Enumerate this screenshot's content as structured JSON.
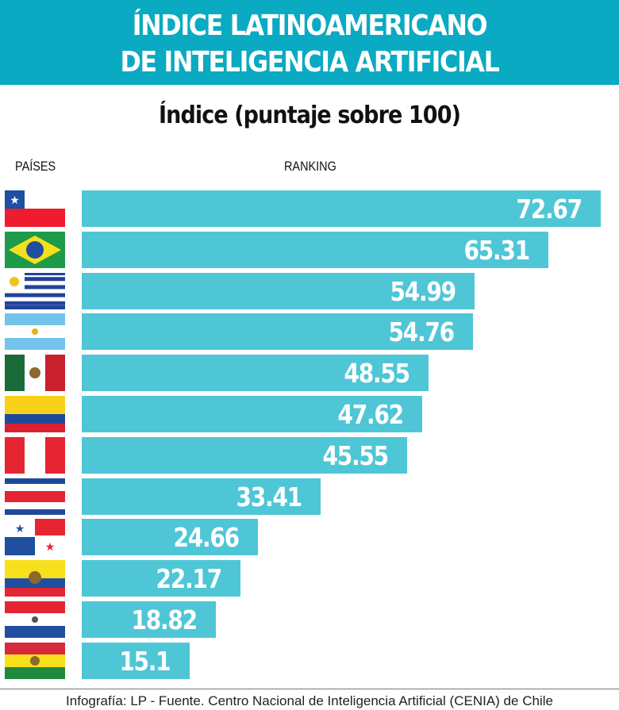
{
  "header": {
    "title_line1": "ÍNDICE LATINOAMERICANO",
    "title_line2": "DE INTELIGENCIA ARTIFICIAL"
  },
  "colors": {
    "header": "#0aaac2",
    "bar": "#4fc6d6"
  },
  "chart_data": {
    "type": "bar",
    "orientation": "horizontal",
    "title": "Índice (puntaje sobre 100)",
    "category_header": "PAÍSES",
    "value_header": "RANKING",
    "categories": [
      "flag-chile",
      "flag-brazil",
      "flag-uruguay",
      "flag-argentina",
      "flag-mexico",
      "flag-colombia",
      "flag-peru",
      "flag-costa-rica",
      "flag-panama",
      "flag-ecuador",
      "flag-paraguay",
      "flag-bolivia"
    ],
    "values": [
      72.67,
      65.31,
      54.99,
      54.76,
      48.55,
      47.62,
      45.55,
      33.41,
      24.66,
      22.17,
      18.82,
      15.1
    ],
    "labels": [
      "72.67",
      "65.31",
      "54.99",
      "54.76",
      "48.55",
      "47.62",
      "45.55",
      "33.41",
      "24.66",
      "22.17",
      "18.82",
      "15.1"
    ],
    "xlim": [
      0,
      100
    ],
    "grid": false
  },
  "footer": {
    "source": "Infografía: LP - Fuente. Centro Nacional de Inteligencia Artificial (CENIA) de Chile"
  }
}
